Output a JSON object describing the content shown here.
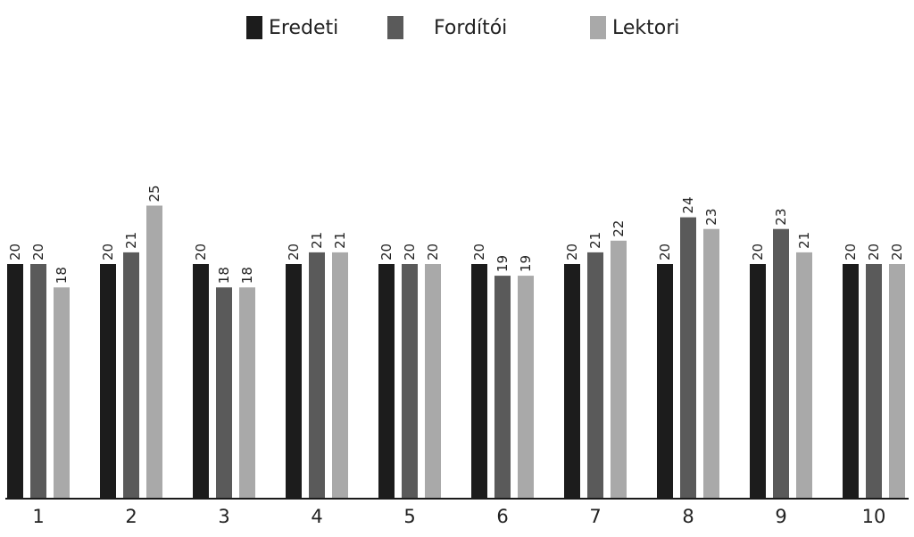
{
  "chart_data": {
    "type": "bar",
    "categories": [
      "1",
      "2",
      "3",
      "4",
      "5",
      "6",
      "7",
      "8",
      "9",
      "10"
    ],
    "series": [
      {
        "name": "Eredeti",
        "color": "#1c1c1c",
        "values": [
          20,
          20,
          20,
          20,
          20,
          20,
          20,
          20,
          20,
          20
        ]
      },
      {
        "name": "Fordítói",
        "color": "#5a5a5a",
        "values": [
          20,
          21,
          18,
          21,
          20,
          19,
          21,
          24,
          23,
          20
        ]
      },
      {
        "name": "Lektori",
        "color": "#a9a9a9",
        "values": [
          18,
          25,
          18,
          21,
          20,
          19,
          22,
          23,
          21,
          20
        ]
      }
    ],
    "title": "",
    "xlabel": "",
    "ylabel": "",
    "ylim": [
      0,
      25
    ],
    "grid": false,
    "legend_position": "top-center",
    "axis_color": "#1a1a1a"
  }
}
